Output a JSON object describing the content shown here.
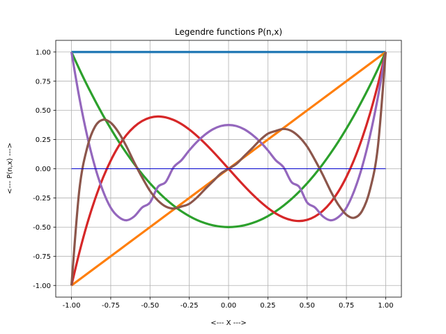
{
  "chart_data": {
    "type": "line",
    "title": "Legendre functions P(n,x)",
    "xlabel": "<--- X --->",
    "ylabel": "<--- P(n,x) --->",
    "xlim": [
      -1.1,
      1.1
    ],
    "ylim": [
      -1.1,
      1.1
    ],
    "grid": true,
    "x": [
      -1.0,
      -0.95,
      -0.9,
      -0.85,
      -0.8,
      -0.75,
      -0.7,
      -0.65,
      -0.6,
      -0.55,
      -0.5,
      -0.45,
      -0.4,
      -0.35,
      -0.3,
      -0.25,
      -0.2,
      -0.15,
      -0.1,
      -0.05,
      0.0,
      0.05,
      0.1,
      0.15,
      0.2,
      0.25,
      0.3,
      0.35,
      0.4,
      0.45,
      0.5,
      0.55,
      0.6,
      0.65,
      0.7,
      0.75,
      0.8,
      0.85,
      0.9,
      0.95,
      1.0
    ],
    "xticks": [
      "-1.00",
      "-0.75",
      "-0.50",
      "-0.25",
      "0.00",
      "0.25",
      "0.50",
      "0.75",
      "1.00"
    ],
    "yticks": [
      "-1.00",
      "-0.75",
      "-0.50",
      "-0.25",
      "0.00",
      "0.25",
      "0.50",
      "0.75",
      "1.00"
    ],
    "series": [
      {
        "color": "#1f77b4",
        "values": [
          1.0,
          1.0,
          1.0,
          1.0,
          1.0,
          1.0,
          1.0,
          1.0,
          1.0,
          1.0,
          1.0,
          1.0,
          1.0,
          1.0,
          1.0,
          1.0,
          1.0,
          1.0,
          1.0,
          1.0,
          1.0,
          1.0,
          1.0,
          1.0,
          1.0,
          1.0,
          1.0,
          1.0,
          1.0,
          1.0,
          1.0,
          1.0,
          1.0,
          1.0,
          1.0,
          1.0,
          1.0,
          1.0,
          1.0,
          1.0,
          1.0
        ]
      },
      {
        "color": "#ff7f0e",
        "values": [
          -1.0,
          -0.95,
          -0.9,
          -0.85,
          -0.8,
          -0.75,
          -0.7,
          -0.65,
          -0.6,
          -0.55,
          -0.5,
          -0.45,
          -0.4,
          -0.35,
          -0.3,
          -0.25,
          -0.2,
          -0.15,
          -0.1,
          -0.05,
          0.0,
          0.05,
          0.1,
          0.15,
          0.2,
          0.25,
          0.3,
          0.35,
          0.4,
          0.45,
          0.5,
          0.55,
          0.6,
          0.65,
          0.7,
          0.75,
          0.8,
          0.85,
          0.9,
          0.95,
          1.0
        ]
      },
      {
        "color": "#2ca02c",
        "values": [
          1.0,
          0.854,
          0.715,
          0.584,
          0.46,
          0.344,
          0.235,
          0.134,
          0.04,
          -0.046,
          -0.125,
          -0.196,
          -0.26,
          -0.316,
          -0.365,
          -0.406,
          -0.44,
          -0.466,
          -0.485,
          -0.496,
          -0.5,
          -0.496,
          -0.485,
          -0.466,
          -0.44,
          -0.406,
          -0.365,
          -0.316,
          -0.26,
          -0.196,
          -0.125,
          -0.046,
          0.04,
          0.134,
          0.235,
          0.344,
          0.46,
          0.584,
          0.715,
          0.854,
          1.0
        ]
      },
      {
        "color": "#d62728",
        "values": [
          -1.0,
          -0.719,
          -0.472,
          -0.261,
          -0.08,
          0.07,
          0.193,
          0.289,
          0.36,
          0.409,
          0.438,
          0.448,
          0.44,
          0.418,
          0.383,
          0.336,
          0.28,
          0.217,
          0.148,
          0.075,
          0.0,
          -0.075,
          -0.148,
          -0.217,
          -0.28,
          -0.336,
          -0.383,
          -0.418,
          -0.44,
          -0.448,
          -0.438,
          -0.409,
          -0.36,
          -0.289,
          -0.193,
          -0.07,
          0.08,
          0.261,
          0.472,
          0.719,
          1.0
        ]
      },
      {
        "color": "#9467bd",
        "values": [
          1.0,
          0.61,
          0.282,
          0.016,
          -0.188,
          -0.334,
          -0.413,
          -0.442,
          -0.408,
          -0.332,
          -0.289,
          -0.156,
          -0.113,
          0.012,
          0.073,
          0.158,
          0.232,
          0.292,
          0.338,
          0.366,
          0.375,
          0.366,
          0.338,
          0.292,
          0.232,
          0.158,
          0.073,
          0.012,
          -0.113,
          -0.156,
          -0.289,
          -0.332,
          -0.408,
          -0.442,
          -0.413,
          -0.334,
          -0.188,
          0.016,
          0.282,
          0.61,
          1.0
        ]
      },
      {
        "color": "#8c564b",
        "values": [
          -1.0,
          -0.184,
          0.18,
          0.361,
          0.42,
          0.394,
          0.311,
          0.192,
          0.053,
          -0.075,
          -0.19,
          -0.272,
          -0.324,
          -0.341,
          -0.324,
          -0.3,
          -0.245,
          -0.175,
          -0.109,
          -0.042,
          0.0,
          0.042,
          0.109,
          0.175,
          0.245,
          0.3,
          0.324,
          0.341,
          0.324,
          0.272,
          0.19,
          0.075,
          -0.053,
          -0.192,
          -0.311,
          -0.394,
          -0.42,
          -0.361,
          -0.18,
          0.184,
          1.0
        ]
      }
    ],
    "zero_line": {
      "color": "#0000cc",
      "x": [
        -1.0,
        1.0
      ],
      "y": [
        0.0,
        0.0
      ]
    }
  }
}
